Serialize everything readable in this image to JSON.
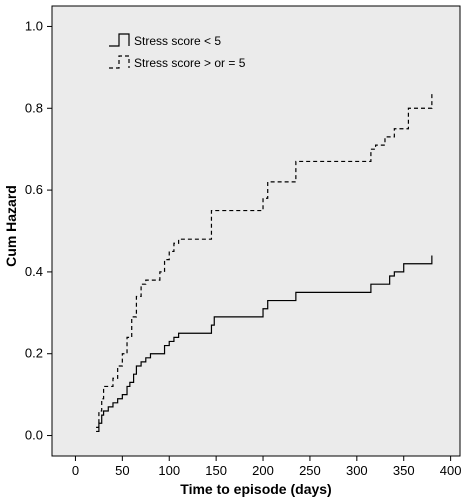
{
  "chart_data": {
    "type": "line",
    "subtype": "step",
    "title": "",
    "xlabel": "Time to episode (days)",
    "ylabel": "Cum Hazard",
    "xlim": [
      -25,
      410
    ],
    "ylim": [
      -0.05,
      1.05
    ],
    "xticks": [
      0,
      50,
      100,
      150,
      200,
      250,
      300,
      350,
      400
    ],
    "yticks": [
      0.0,
      0.2,
      0.4,
      0.6,
      0.8,
      1.0
    ],
    "ytick_labels": [
      "0.0",
      "0.2",
      "0.4",
      "0.6",
      "0.8",
      "1.0"
    ],
    "plot_background": "#ebebeb",
    "legend_position": "top-left",
    "series": [
      {
        "name": "Stress score < 5",
        "line_style": "solid",
        "color": "#000000",
        "x": [
          22,
          25,
          28,
          30,
          35,
          40,
          45,
          50,
          55,
          58,
          62,
          65,
          70,
          75,
          80,
          95,
          100,
          105,
          110,
          145,
          148,
          200,
          205,
          210,
          235,
          315,
          320,
          335,
          340,
          350,
          380
        ],
        "y": [
          0.01,
          0.03,
          0.05,
          0.06,
          0.07,
          0.08,
          0.09,
          0.1,
          0.12,
          0.13,
          0.15,
          0.17,
          0.18,
          0.19,
          0.2,
          0.22,
          0.23,
          0.24,
          0.25,
          0.27,
          0.29,
          0.31,
          0.33,
          0.33,
          0.35,
          0.37,
          0.37,
          0.39,
          0.4,
          0.42,
          0.44
        ]
      },
      {
        "name": "Stress score > or = 5",
        "line_style": "dashed",
        "color": "#000000",
        "x": [
          22,
          25,
          28,
          30,
          40,
          45,
          50,
          55,
          60,
          65,
          70,
          75,
          90,
          95,
          100,
          105,
          110,
          145,
          200,
          205,
          210,
          235,
          315,
          320,
          330,
          340,
          355,
          380
        ],
        "y": [
          0.02,
          0.06,
          0.09,
          0.12,
          0.14,
          0.17,
          0.2,
          0.24,
          0.29,
          0.34,
          0.37,
          0.38,
          0.4,
          0.43,
          0.45,
          0.47,
          0.48,
          0.55,
          0.58,
          0.62,
          0.62,
          0.67,
          0.7,
          0.71,
          0.73,
          0.75,
          0.8,
          0.84
        ]
      }
    ]
  }
}
